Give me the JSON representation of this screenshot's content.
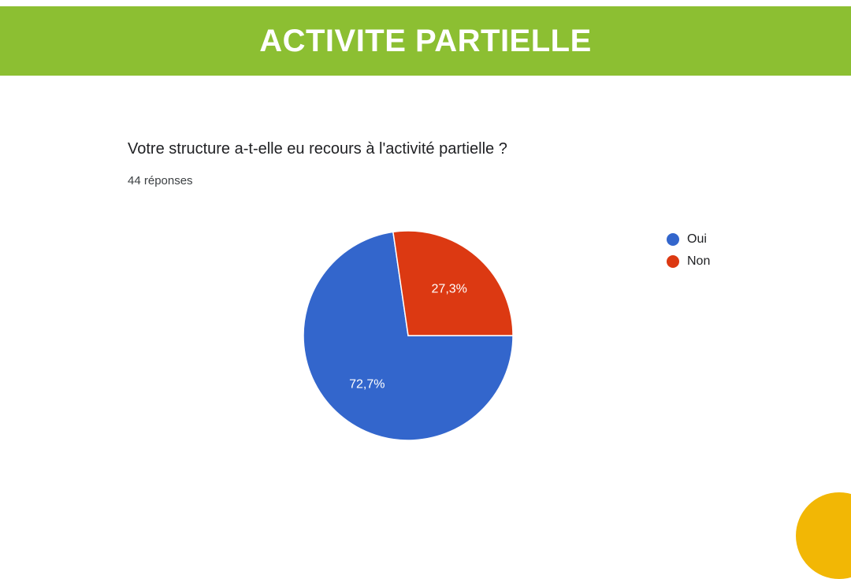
{
  "banner": {
    "title": "ACTIVITE PARTIELLE",
    "color": "#8cbf32"
  },
  "question": {
    "text": "Votre structure a-t-elle eu recours à l'activité partielle ?",
    "responses": "44 réponses"
  },
  "chart_data": {
    "type": "pie",
    "categories": [
      "Oui",
      "Non"
    ],
    "values": [
      72.7,
      27.3
    ],
    "labels": [
      "72,7%",
      "27,3%"
    ],
    "colors": [
      "#3366cc",
      "#dc3912"
    ],
    "legend_position": "right"
  },
  "decoration": {
    "color": "#f2b705"
  }
}
